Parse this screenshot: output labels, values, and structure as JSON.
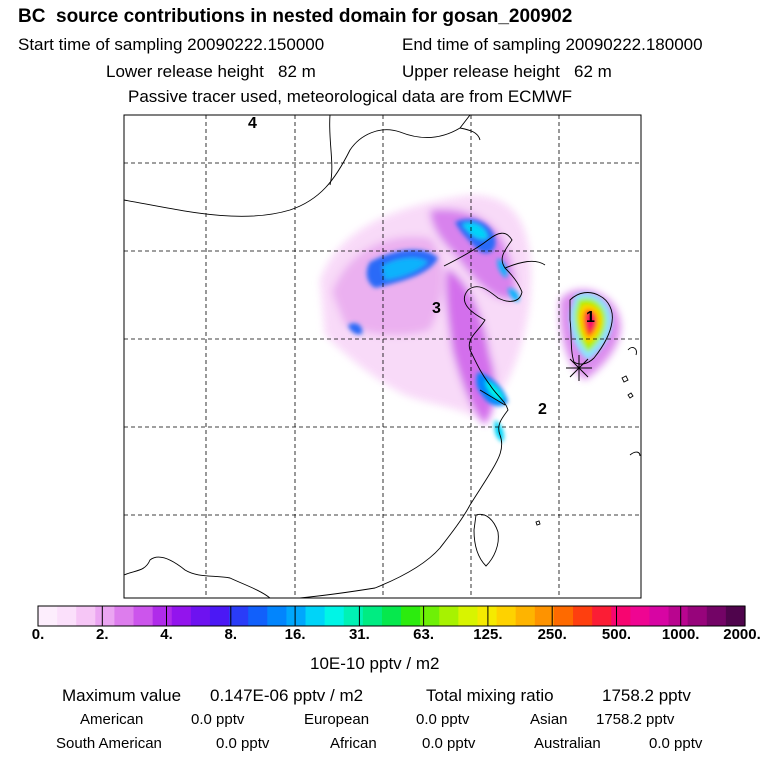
{
  "title": "BC  source contributions in nested domain for gosan_200902",
  "sampling": {
    "start": "Start time of sampling 20090222.150000",
    "end": "End time of sampling 20090222.180000"
  },
  "release": {
    "lower": "Lower release height   82 m",
    "upper": "Upper release height   62 m"
  },
  "note": "Passive tracer used, meteorological data are from ECMWF",
  "map_labels": [
    "1",
    "2",
    "3",
    "4"
  ],
  "colorbar": {
    "colors": [
      "#fdeefd",
      "#fbe0fb",
      "#f6c6f6",
      "#eba5f2",
      "#dd7ded",
      "#cc55ec",
      "#b02bea",
      "#9314ed",
      "#6e12f0",
      "#4b18f5",
      "#2a3cf8",
      "#1160fb",
      "#0285fd",
      "#00a7fd",
      "#00d4f8",
      "#00f5e6",
      "#00f2b5",
      "#00ec82",
      "#06e84d",
      "#2cec0e",
      "#6ef006",
      "#a7f201",
      "#d8f400",
      "#f5ea00",
      "#fed200",
      "#feb400",
      "#fe9300",
      "#fe6a00",
      "#fe3f0f",
      "#fb1d35",
      "#f70570",
      "#ef0592",
      "#d705a3",
      "#b9058f",
      "#97047b",
      "#730466",
      "#4f044c"
    ],
    "ticks": [
      "0.",
      "2.",
      "4.",
      "8.",
      "16.",
      "31.",
      "63.",
      "125.",
      "250.",
      "500.",
      "1000.",
      "2000."
    ],
    "unit": "10E-10 pptv / m2"
  },
  "summary": {
    "max_label": "Maximum value",
    "max_value": "0.147E-06 pptv / m2",
    "total_label": "Total mixing ratio",
    "total_value": "1758.2 pptv"
  },
  "regions": [
    {
      "name": "American",
      "value": "0.0 pptv"
    },
    {
      "name": "European",
      "value": "0.0 pptv"
    },
    {
      "name": "Asian",
      "value": "1758.2 pptv"
    },
    {
      "name": "South American",
      "value": "0.0 pptv"
    },
    {
      "name": "African",
      "value": "0.0 pptv"
    },
    {
      "name": "Australian",
      "value": "0.0 pptv"
    }
  ]
}
